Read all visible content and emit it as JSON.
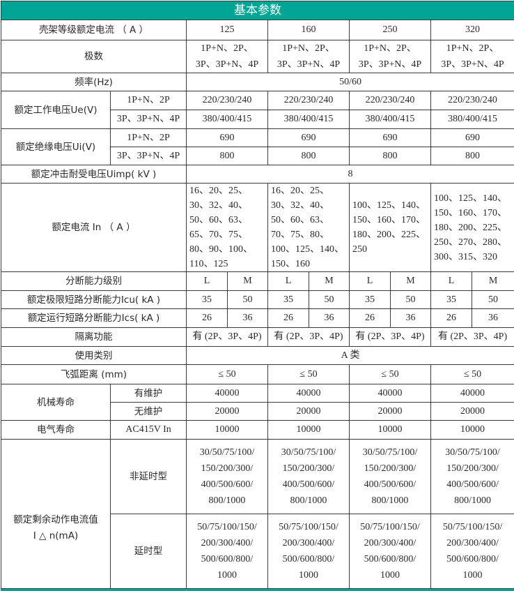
{
  "header": {
    "title": "基本参数"
  },
  "frame": {
    "label": "壳架等级额定电流 （ A ）",
    "values": [
      "125",
      "160",
      "250",
      "320"
    ]
  },
  "poles": {
    "label": "极数",
    "values": [
      "1P+N、2P、\n3P、3P+N、4P",
      "1P+N、2P、\n3P、3P+N、4P",
      "1P+N、2P、\n3P、3P+N、4P",
      "1P+N、2P、\n3P、3P+N、4P"
    ]
  },
  "frequency": {
    "label": "频率(Hz)",
    "value": "50/60"
  },
  "ue": {
    "label": "额定工作电压Ue(V)",
    "rows": [
      {
        "sub": "1P+N、2P",
        "values": [
          "220/230/240",
          "220/230/240",
          "220/230/240",
          "220/230/240"
        ]
      },
      {
        "sub": "3P、3P+N、4P",
        "values": [
          "380/400/415",
          "380/400/415",
          "380/400/415",
          "380/400/415"
        ]
      }
    ]
  },
  "ui": {
    "label": "额定绝缘电压Ui(V)",
    "rows": [
      {
        "sub": "1P+N、2P",
        "values": [
          "690",
          "690",
          "690",
          "690"
        ]
      },
      {
        "sub": "3P、3P+N、4P",
        "values": [
          "800",
          "800",
          "800",
          "800"
        ]
      }
    ]
  },
  "uimp": {
    "label": "额定冲击耐受电压Uimp( kV )",
    "value": "8"
  },
  "in": {
    "label": "额定电流 In （ A ）",
    "values": [
      "16、20、25、\n30、32、40、\n50、60、63、\n65、70、75、\n80、90、100、\n110、125",
      "16、20、25、\n30、32、40、\n50、60、63、\n70、75、80、\n100、125、140、\n150、160",
      "100、125、140、\n150、160、170、\n180、200、225、\n250",
      "100、125、140、\n150、160、170、\n180、200、225、\n250、270、280、\n300、315、320"
    ]
  },
  "breaking_class": {
    "label": "分断能力级别",
    "values": [
      "L",
      "M",
      "L",
      "M",
      "L",
      "M",
      "L",
      "M"
    ]
  },
  "icu": {
    "label": "额定极限短路分断能力Icu( kA )",
    "values": [
      "35",
      "50",
      "35",
      "50",
      "35",
      "50",
      "35",
      "50"
    ]
  },
  "ics": {
    "label": "额定运行短路分断能力Ics( kA )",
    "values": [
      "26",
      "36",
      "26",
      "36",
      "26",
      "36",
      "26",
      "36"
    ]
  },
  "isolation": {
    "label": "隔离功能",
    "values": [
      "有 (2P、3P、4P)",
      "有 (2P、3P、4P)",
      "有 (2P、3P、4P)",
      "有 (2P、3P、4P)"
    ]
  },
  "category": {
    "label": "使用类别",
    "value": "A 类"
  },
  "arc": {
    "label": "飞弧距离 (mm)",
    "values": [
      "≤ 50",
      "≤ 50",
      "≤ 50",
      "≤ 50"
    ]
  },
  "mech_life": {
    "label": "机械寿命",
    "rows": [
      {
        "sub": "有维护",
        "values": [
          "40000",
          "40000",
          "40000",
          "40000"
        ]
      },
      {
        "sub": "无维护",
        "values": [
          "20000",
          "20000",
          "20000",
          "20000"
        ]
      }
    ]
  },
  "elec_life": {
    "label": "电气寿命",
    "sub": "AC415V In",
    "values": [
      "10000",
      "10000",
      "10000",
      "10000"
    ]
  },
  "residual": {
    "label": "额定剩余动作电流值\nI △ n(mA)",
    "rows": [
      {
        "sub": "非延时型",
        "values": [
          "30/50/75/100/\n150/200/300/\n400/500/600/\n800/1000",
          "30/50/75/100/\n150/200/300/\n400/500/600/\n800/1000",
          "30/50/75/100/\n150/200/300/\n400/500/600/\n800/1000",
          "30/50/75/100/\n150/200/300/\n400/500/600/\n800/1000"
        ]
      },
      {
        "sub": "延时型",
        "values": [
          "50/75/100/150/\n200/300/400/\n500/600/800/\n1000",
          "50/75/100/150/\n200/300/400/\n500/600/800/\n1000",
          "50/75/100/150/\n200/300/400/\n500/600/800/\n1000",
          "50/75/100/150/\n200/300/400/\n500/600/800/\n1000"
        ]
      }
    ]
  }
}
